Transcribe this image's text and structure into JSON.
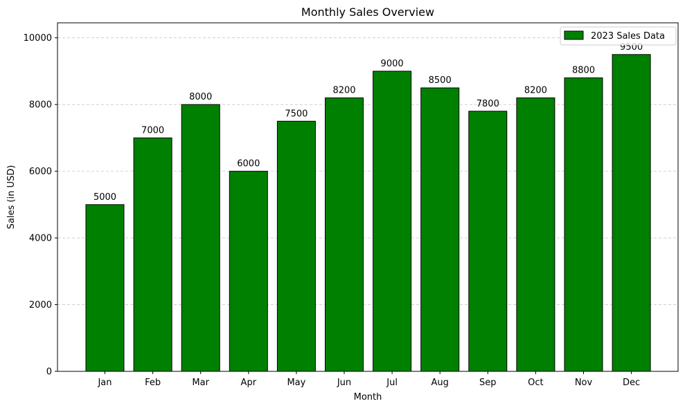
{
  "chart_data": {
    "type": "bar",
    "title": "Monthly Sales Overview",
    "xlabel": "Month",
    "ylabel": "Sales (in USD)",
    "categories": [
      "Jan",
      "Feb",
      "Mar",
      "Apr",
      "May",
      "Jun",
      "Jul",
      "Aug",
      "Sep",
      "Oct",
      "Nov",
      "Dec"
    ],
    "series": [
      {
        "name": "2023 Sales Data",
        "values": [
          5000,
          7000,
          8000,
          6000,
          7500,
          8200,
          9000,
          8500,
          7800,
          8200,
          8800,
          9500
        ],
        "color": "#008000",
        "edge_color": "#000000"
      }
    ],
    "ylim": [
      0,
      10450
    ],
    "yticks": [
      0,
      2000,
      4000,
      6000,
      8000,
      10000
    ],
    "grid": {
      "axis": "y",
      "style": "dashed",
      "color": "#c8c8c8"
    },
    "legend": {
      "position": "top-right"
    },
    "data_labels": true
  }
}
